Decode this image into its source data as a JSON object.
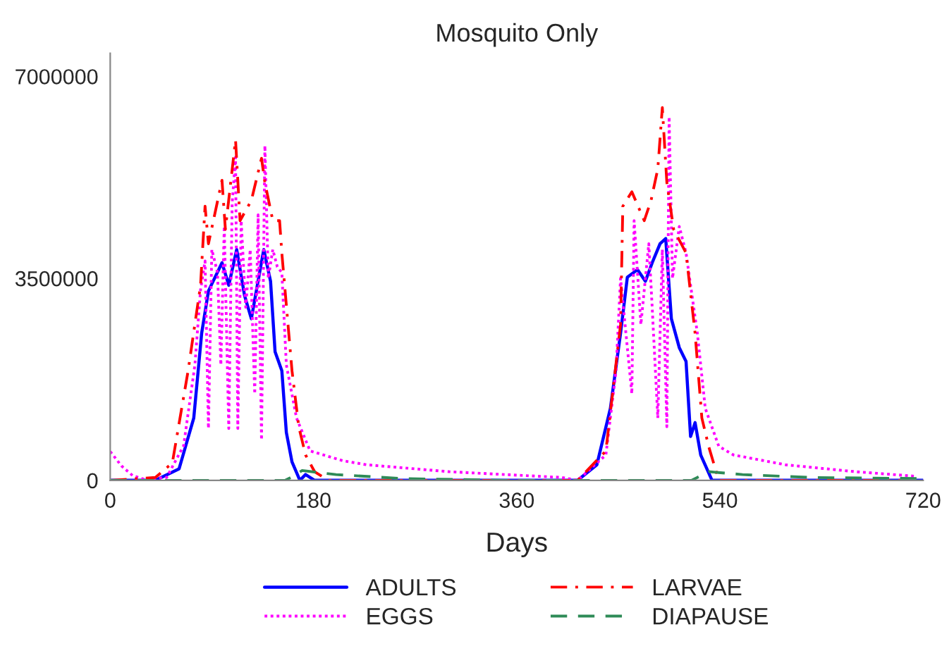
{
  "chart_data": {
    "type": "line",
    "title": "Mosquito Only",
    "xlabel": "Days",
    "xlim": [
      0,
      720
    ],
    "xticks": [
      0,
      180,
      360,
      540,
      720
    ],
    "ylim": [
      0,
      7400000
    ],
    "yticks": [
      0,
      3500000,
      7000000
    ],
    "grid": false,
    "legend": "bottom",
    "marker": "none",
    "series": [
      {
        "name": "ADULTS",
        "color": "#0000ff",
        "line_style": "solid",
        "x": [
          0,
          40,
          61,
          74,
          81,
          87,
          99,
          105,
          112,
          119,
          125,
          136,
          142,
          146,
          152,
          156,
          161,
          168,
          173,
          181,
          414,
          431,
          443,
          452,
          458,
          467,
          474,
          480,
          487,
          492,
          497,
          504,
          510,
          514,
          518,
          523,
          533,
          720
        ],
        "values": [
          0,
          0,
          200000,
          1080000,
          2550000,
          3280000,
          3770000,
          3380000,
          4000000,
          3200000,
          2800000,
          4000000,
          3450000,
          2230000,
          1900000,
          830000,
          320000,
          0,
          100000,
          0,
          0,
          270000,
          1250000,
          2550000,
          3520000,
          3650000,
          3450000,
          3770000,
          4100000,
          4190000,
          2800000,
          2300000,
          2060000,
          760000,
          1000000,
          440000,
          0,
          0
        ]
      },
      {
        "name": "EGGS",
        "color": "#ff00ff",
        "line_style": "dotted",
        "x": [
          0,
          10,
          20,
          30,
          50,
          65,
          75,
          80,
          84,
          87,
          90,
          95,
          98,
          101,
          105,
          108,
          111,
          113,
          116,
          120,
          124,
          128,
          131,
          134,
          137,
          140,
          144,
          148,
          152,
          156,
          165,
          177,
          206,
          227,
          300,
          400,
          414,
          439,
          448,
          452,
          462,
          464,
          470,
          477,
          480,
          485,
          489,
          493,
          495,
          498,
          504,
          510,
          514,
          520,
          527,
          539,
          552,
          598,
          660,
          714
        ],
        "values": [
          500000,
          250000,
          80000,
          20000,
          50000,
          600000,
          2000000,
          3300000,
          3800000,
          900000,
          4000000,
          3600000,
          2000000,
          4400000,
          900000,
          4800000,
          5600000,
          900000,
          4500000,
          3000000,
          4000000,
          1500000,
          4600000,
          700000,
          5800000,
          3500000,
          4000000,
          3700000,
          3600000,
          2000000,
          1080000,
          510000,
          340000,
          270000,
          150000,
          50000,
          0,
          440000,
          1900000,
          3500000,
          1500000,
          4500000,
          2700000,
          4100000,
          3000000,
          1080000,
          4000000,
          930000,
          6300000,
          3500000,
          4400000,
          3940000,
          3380000,
          2550000,
          1250000,
          590000,
          440000,
          270000,
          150000,
          70000
        ]
      },
      {
        "name": "LARVAE",
        "color": "#ff0000",
        "line_style": "dashdot",
        "x": [
          0,
          40,
          55,
          69,
          80,
          84,
          87,
          99,
          102,
          111,
          115,
          125,
          134,
          137,
          144,
          150,
          152,
          161,
          167,
          173,
          181,
          193,
          414,
          439,
          452,
          454,
          462,
          473,
          479,
          485,
          489,
          493,
          499,
          510,
          518,
          524,
          530,
          539,
          720
        ],
        "values": [
          0,
          50000,
          300000,
          1900000,
          3380000,
          4750000,
          4100000,
          5200000,
          4350000,
          5900000,
          4500000,
          4850000,
          5580000,
          5160000,
          4500000,
          4500000,
          3940000,
          1900000,
          930000,
          440000,
          150000,
          0,
          0,
          510000,
          2700000,
          4750000,
          5000000,
          4500000,
          4850000,
          5400000,
          6460000,
          5160000,
          4350000,
          3940000,
          2550000,
          1080000,
          590000,
          0,
          0
        ]
      },
      {
        "name": "DIAPAUSE",
        "color": "#2e8b57",
        "line_style": "dashed",
        "x": [
          0,
          155,
          160,
          170,
          200,
          260,
          350,
          515,
          520,
          530,
          560,
          620,
          720
        ],
        "values": [
          0,
          0,
          50000,
          170000,
          100000,
          30000,
          0,
          0,
          50000,
          150000,
          100000,
          50000,
          30000
        ]
      }
    ]
  }
}
